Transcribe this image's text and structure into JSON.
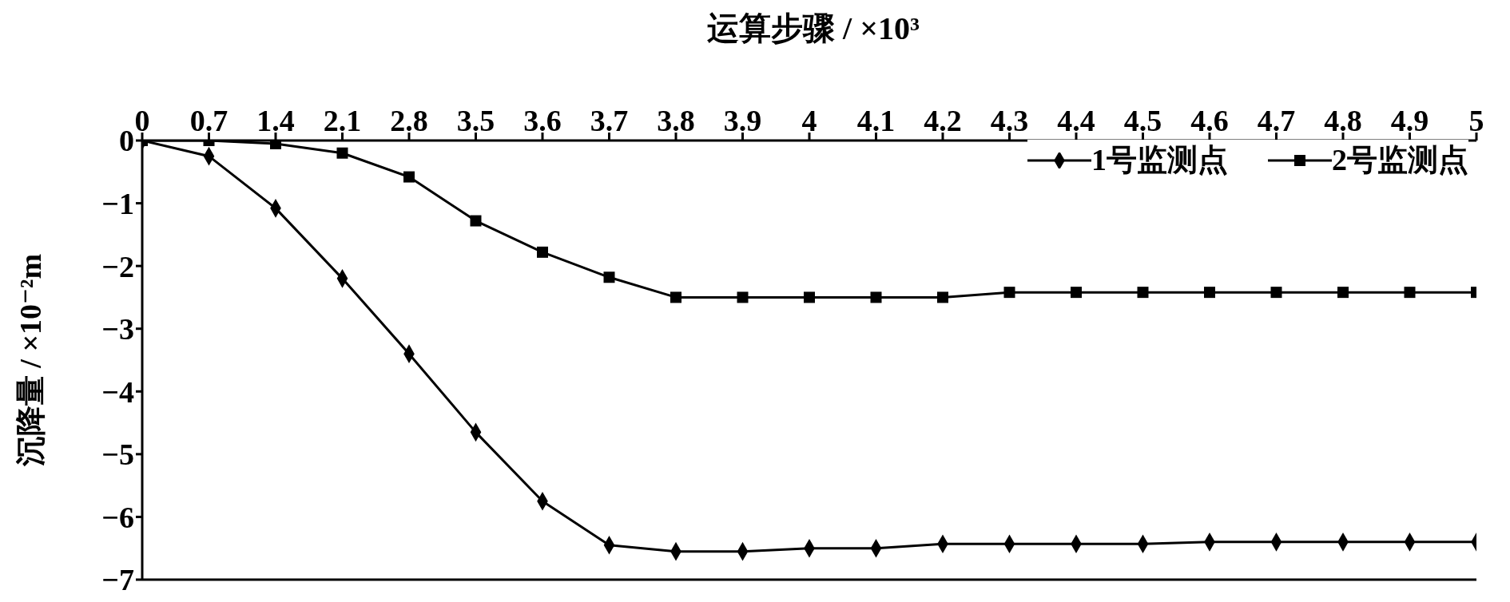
{
  "chart_data": {
    "type": "line",
    "xlabel": "运算步骤 / ×10³",
    "ylabel": "沉降量 / ×10⁻²m",
    "categories": [
      "0",
      "0.7",
      "1.4",
      "2.1",
      "2.8",
      "3.5",
      "3.6",
      "3.7",
      "3.8",
      "3.9",
      "4",
      "4.1",
      "4.2",
      "4.3",
      "4.4",
      "4.5",
      "4.6",
      "4.7",
      "4.8",
      "4.9",
      "5"
    ],
    "series": [
      {
        "name": "1号监测点",
        "color": "#000000",
        "marker": "diamond",
        "values": [
          0,
          -0.25,
          -1.08,
          -2.2,
          -3.4,
          -4.65,
          -5.75,
          -6.45,
          -6.55,
          -6.55,
          -6.5,
          -6.5,
          -6.43,
          -6.43,
          -6.43,
          -6.43,
          -6.4,
          -6.4,
          -6.4,
          -6.4,
          -6.4
        ]
      },
      {
        "name": "2号监测点",
        "color": "#000000",
        "marker": "square",
        "values": [
          0,
          0,
          -0.05,
          -0.2,
          -0.58,
          -1.28,
          -1.78,
          -2.18,
          -2.5,
          -2.5,
          -2.5,
          -2.5,
          -2.5,
          -2.42,
          -2.42,
          -2.42,
          -2.42,
          -2.42,
          -2.42,
          -2.42,
          -2.42
        ]
      }
    ],
    "ylim": [
      -7,
      0
    ],
    "yticks": [
      0,
      -1,
      -2,
      -3,
      -4,
      -5,
      -6,
      -7
    ],
    "grid": false,
    "legend": "top right",
    "line_style": "solid"
  }
}
